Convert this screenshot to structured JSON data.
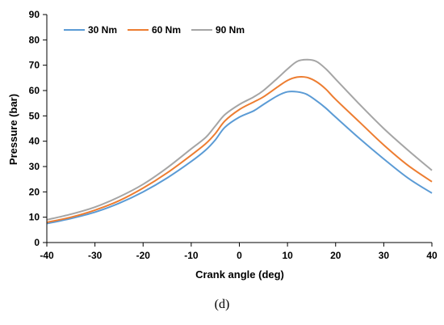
{
  "panel_label": "(d)",
  "chart_data": {
    "type": "line",
    "xlabel": "Crank angle (deg)",
    "ylabel": "Pressure (bar)",
    "xlim": [
      -40,
      40
    ],
    "ylim": [
      0,
      90
    ],
    "xticks": [
      -40,
      -30,
      -20,
      -10,
      0,
      10,
      20,
      30,
      40
    ],
    "yticks": [
      0,
      10,
      20,
      30,
      40,
      50,
      60,
      70,
      80,
      90
    ],
    "grid": false,
    "legend_position": "top-left",
    "series": [
      {
        "name": "30 Nm",
        "color": "#5b9bd5",
        "x": [
          -40,
          -35,
          -30,
          -25,
          -20,
          -15,
          -10,
          -7,
          -5,
          -3,
          0,
          3,
          5,
          8,
          10,
          12,
          14,
          16,
          18,
          20,
          25,
          30,
          35,
          40
        ],
        "y": [
          7.5,
          9.5,
          12,
          15.5,
          20,
          25.5,
          32,
          36.5,
          40.5,
          45.5,
          49.5,
          52,
          54.5,
          58,
          59.5,
          59.5,
          58.5,
          56,
          53,
          49.5,
          41,
          33,
          25.5,
          19.5
        ]
      },
      {
        "name": "60 Nm",
        "color": "#ed7d31",
        "x": [
          -40,
          -35,
          -30,
          -25,
          -20,
          -15,
          -10,
          -7,
          -5,
          -3,
          0,
          3,
          5,
          8,
          10,
          12,
          14,
          16,
          18,
          20,
          25,
          30,
          35,
          40
        ],
        "y": [
          8,
          10,
          12.8,
          16.5,
          21.5,
          27.5,
          34.5,
          39,
          43,
          48,
          52.5,
          55.5,
          57.5,
          61.5,
          64,
          65.3,
          65.2,
          63.5,
          60.5,
          56.5,
          47.5,
          38.5,
          30.5,
          24
        ]
      },
      {
        "name": "90 Nm",
        "color": "#a5a5a5",
        "x": [
          -40,
          -35,
          -30,
          -25,
          -20,
          -15,
          -10,
          -7,
          -5,
          -3,
          0,
          3,
          5,
          8,
          10,
          12,
          14,
          16,
          18,
          20,
          25,
          30,
          35,
          40
        ],
        "y": [
          9,
          11.2,
          14,
          18,
          23,
          29.5,
          37,
          41.5,
          46,
          50.5,
          54.5,
          57.5,
          60,
          65,
          68.5,
          71.5,
          72.2,
          71.5,
          68.5,
          64.5,
          54.5,
          45,
          36.5,
          28.5
        ]
      }
    ]
  }
}
